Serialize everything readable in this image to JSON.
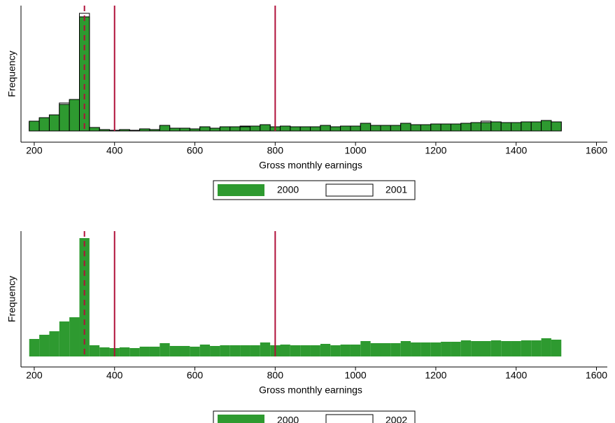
{
  "chart_data": [
    {
      "type": "histogram",
      "xlabel": "Gross monthly earnings",
      "ylabel": "Frequency",
      "bins": [
        187.5,
        212.5,
        237.5,
        262.5,
        287.5,
        312.5,
        337.5,
        362.5,
        387.5,
        412.5,
        437.5,
        462.5,
        487.5,
        512.5,
        537.5,
        562.5,
        587.5,
        612.5,
        637.5,
        662.5,
        687.5,
        712.5,
        737.5,
        762.5,
        787.5,
        812.5,
        837.5,
        862.5,
        887.5,
        912.5,
        937.5,
        962.5,
        987.5,
        1012.5,
        1037.5,
        1062.5,
        1087.5,
        1112.5,
        1137.5,
        1162.5,
        1187.5,
        1212.5,
        1237.5,
        1262.5,
        1287.5,
        1312.5,
        1337.5,
        1362.5,
        1387.5,
        1412.5,
        1437.5,
        1462.5,
        1487.5,
        1512.5
      ],
      "series": [
        {
          "name": "2000",
          "color": "#2e9a30",
          "edgecolor": "#000000",
          "values": [
            14,
            19,
            23,
            38,
            45,
            163,
            5,
            2,
            1,
            2,
            1,
            3,
            2,
            8,
            4,
            4,
            3,
            6,
            4,
            6,
            6,
            6,
            7,
            9,
            6,
            7,
            6,
            6,
            6,
            8,
            6,
            7,
            7,
            11,
            8,
            8,
            8,
            11,
            9,
            9,
            10,
            10,
            10,
            11,
            12,
            12,
            13,
            12,
            12,
            13,
            13,
            15,
            13
          ]
        },
        {
          "name": "2001",
          "color": "#ffffff",
          "edgecolor": "#000000",
          "values": [
            13,
            18,
            23,
            40,
            44,
            168,
            5,
            2,
            1,
            2,
            1,
            3,
            2,
            7,
            4,
            4,
            3,
            6,
            4,
            6,
            6,
            7,
            7,
            9,
            6,
            7,
            6,
            6,
            6,
            8,
            6,
            7,
            7,
            11,
            8,
            8,
            8,
            11,
            9,
            9,
            10,
            10,
            10,
            11,
            12,
            14,
            13,
            12,
            12,
            13,
            13,
            15,
            13
          ]
        }
      ],
      "xlim": [
        167,
        1627
      ],
      "xticks": [
        200,
        400,
        600,
        800,
        1000,
        1200,
        1400,
        1600
      ],
      "ylim": [
        -16,
        179
      ],
      "vlines": [
        {
          "value": 325,
          "style": "dashed"
        },
        {
          "value": 400,
          "style": "solid"
        },
        {
          "value": 800,
          "style": "solid"
        }
      ],
      "vline_color": "#b0103a",
      "legend": "bottom"
    },
    {
      "type": "histogram",
      "xlabel": "Gross monthly earnings",
      "ylabel": "Frequency",
      "bins": [
        187.5,
        212.5,
        237.5,
        262.5,
        287.5,
        312.5,
        337.5,
        362.5,
        387.5,
        412.5,
        437.5,
        462.5,
        487.5,
        512.5,
        537.5,
        562.5,
        587.5,
        612.5,
        637.5,
        662.5,
        687.5,
        712.5,
        737.5,
        762.5,
        787.5,
        812.5,
        837.5,
        862.5,
        887.5,
        912.5,
        937.5,
        962.5,
        987.5,
        1012.5,
        1037.5,
        1062.5,
        1087.5,
        1112.5,
        1137.5,
        1162.5,
        1187.5,
        1212.5,
        1237.5,
        1262.5,
        1287.5,
        1312.5,
        1337.5,
        1362.5,
        1387.5,
        1412.5,
        1437.5,
        1462.5,
        1487.5,
        1512.5
      ],
      "series": [
        {
          "name": "2000",
          "color": "#2e9a30",
          "edgecolor": "none",
          "values": [
            25,
            31,
            36,
            50,
            56,
            169,
            16,
            13,
            12,
            13,
            12,
            14,
            14,
            19,
            15,
            15,
            14,
            17,
            15,
            16,
            16,
            16,
            16,
            20,
            16,
            17,
            16,
            16,
            16,
            18,
            16,
            17,
            17,
            22,
            19,
            19,
            19,
            22,
            20,
            20,
            20,
            21,
            21,
            23,
            22,
            22,
            23,
            22,
            22,
            23,
            23,
            26,
            24
          ]
        },
        {
          "name": "2002",
          "color": "#ffffff",
          "edgecolor": "none",
          "values": [
            25,
            31,
            36,
            50,
            56,
            169,
            16,
            13,
            12,
            13,
            12,
            14,
            14,
            19,
            15,
            15,
            14,
            17,
            15,
            16,
            16,
            16,
            16,
            20,
            16,
            17,
            16,
            16,
            16,
            18,
            16,
            17,
            17,
            22,
            19,
            19,
            19,
            22,
            20,
            20,
            20,
            21,
            21,
            23,
            22,
            22,
            23,
            22,
            22,
            23,
            23,
            26,
            24
          ]
        }
      ],
      "xlim": [
        167,
        1627
      ],
      "xticks": [
        200,
        400,
        600,
        800,
        1000,
        1200,
        1400,
        1600
      ],
      "ylim": [
        -15,
        179
      ],
      "vlines": [
        {
          "value": 325,
          "style": "dashed"
        },
        {
          "value": 400,
          "style": "solid"
        },
        {
          "value": 800,
          "style": "solid"
        }
      ],
      "vline_color": "#b0103a",
      "legend": "bottom"
    }
  ]
}
